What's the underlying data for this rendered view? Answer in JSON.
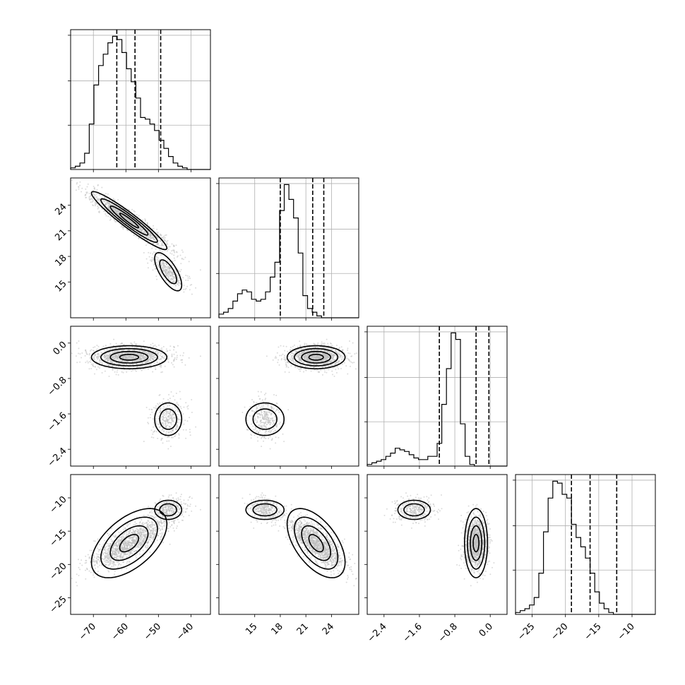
{
  "chart_data": {
    "type": "corner",
    "parameters": [
      {
        "ticks": [
          -70,
          -60,
          -50,
          -40
        ],
        "tick_labels": [
          "−70",
          "−60",
          "−50",
          "−40"
        ],
        "range": [
          -77,
          -34
        ]
      },
      {
        "ticks": [
          15,
          18,
          21,
          24
        ],
        "tick_labels": [
          "15",
          "18",
          "21",
          "24"
        ],
        "range": [
          10.8,
          27.2
        ]
      },
      {
        "ticks": [
          -2.4,
          -1.6,
          -0.8,
          0.0
        ],
        "tick_labels": [
          "−2.4",
          "−1.6",
          "−0.8",
          "0.0"
        ],
        "range": [
          -2.78,
          0.38
        ]
      },
      {
        "ticks": [
          -25,
          -20,
          -15,
          -10
        ],
        "tick_labels": [
          "−25",
          "−20",
          "−15",
          "−10"
        ],
        "range": [
          -27.5,
          -6.5
        ]
      }
    ],
    "quantiles": [
      [
        -62.8,
        -57.2,
        -49.3
      ],
      [
        18.0,
        21.8,
        23.1
      ],
      [
        -1.15,
        -0.32,
        -0.03
      ],
      [
        -19.1,
        -16.3,
        -12.3
      ]
    ],
    "histograms": [
      {
        "edges_start": -77,
        "bin_width": 1.433,
        "counts": [
          1,
          2,
          4,
          10,
          28,
          52,
          64,
          71,
          78,
          82,
          80,
          72,
          62,
          54,
          44,
          32,
          31,
          28,
          24,
          18,
          13,
          8,
          4,
          2,
          1,
          0,
          0,
          0,
          0,
          0
        ]
      },
      {
        "edges_start": 10.8,
        "bin_width": 0.547,
        "counts": [
          2,
          3,
          5,
          9,
          13,
          15,
          14,
          10,
          9,
          10,
          14,
          22,
          30,
          58,
          72,
          64,
          54,
          35,
          12,
          5,
          3,
          1,
          0,
          0,
          0,
          0,
          0,
          0,
          0,
          0
        ]
      },
      {
        "edges_start": -2.78,
        "bin_width": 0.1053,
        "counts": [
          1,
          2,
          3,
          4,
          6,
          8,
          11,
          10,
          9,
          7,
          5,
          4,
          4,
          6,
          6,
          14,
          38,
          60,
          82,
          78,
          26,
          6,
          1,
          0,
          0,
          0,
          0,
          0,
          0,
          0
        ]
      },
      {
        "edges_start": -27.5,
        "bin_width": 0.7,
        "counts": [
          1,
          2,
          3,
          5,
          9,
          22,
          44,
          62,
          71,
          70,
          64,
          62,
          48,
          41,
          36,
          30,
          22,
          12,
          6,
          3,
          1,
          0,
          0,
          0,
          0,
          0,
          0,
          0,
          0,
          0
        ]
      }
    ],
    "gridlines": true
  }
}
